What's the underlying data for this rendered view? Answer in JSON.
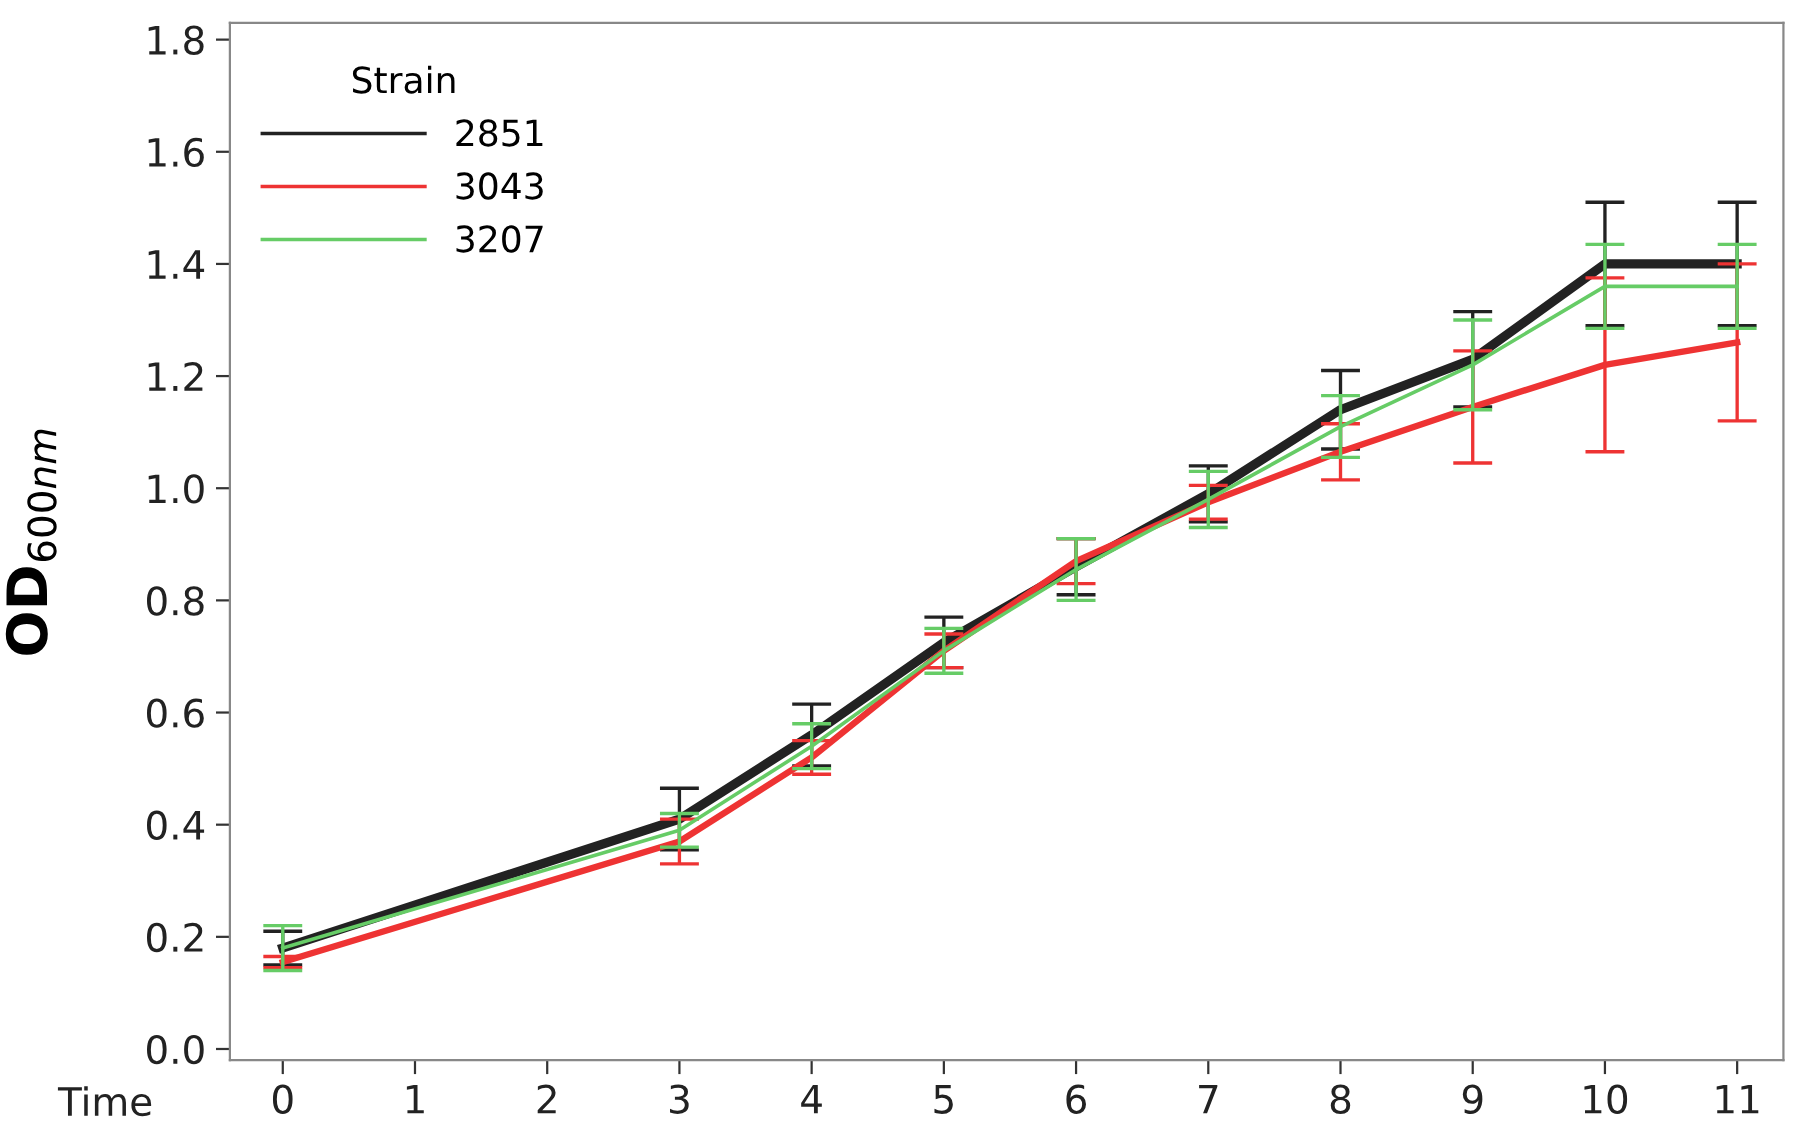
{
  "chart_data": {
    "type": "line",
    "xlabel": "Time",
    "ylabel": "OD$_{600nm}$",
    "legend_title": "Strain",
    "legend": "top left",
    "grid": false,
    "marker": "none",
    "line_style": "solid",
    "x": [
      0,
      3,
      4,
      5,
      6,
      7,
      8,
      9,
      10,
      11
    ],
    "xlim": [
      -0.4,
      11.35
    ],
    "xticks": [
      0,
      1,
      2,
      3,
      4,
      5,
      6,
      7,
      8,
      9,
      10,
      11
    ],
    "ylim": [
      -0.02,
      1.83
    ],
    "yticks": [
      {
        "value": 0,
        "label": "0.0"
      },
      0.2,
      0.4,
      0.6,
      0.8,
      {
        "value": 1,
        "label": "1.0"
      },
      1.2,
      1.4,
      1.6,
      1.8
    ],
    "series": [
      {
        "name": "2851",
        "color": "#222222",
        "values": [
          0.18,
          0.41,
          0.56,
          0.725,
          0.86,
          0.99,
          1.14,
          1.23,
          1.4,
          1.4
        ],
        "errors": [
          0.03,
          0.055,
          0.055,
          0.045,
          0.05,
          0.05,
          0.07,
          0.085,
          0.11,
          0.11
        ]
      },
      {
        "name": "3043",
        "color": "#ee3333",
        "values": [
          0.155,
          0.37,
          0.52,
          0.71,
          0.87,
          0.975,
          1.065,
          1.145,
          1.22,
          1.26
        ],
        "errors": [
          0.01,
          0.04,
          0.03,
          0.03,
          0.04,
          0.03,
          0.05,
          0.1,
          0.155,
          0.14
        ]
      },
      {
        "name": "3207",
        "color": "#66cc66",
        "values": [
          0.18,
          0.39,
          0.54,
          0.71,
          0.855,
          0.98,
          1.11,
          1.22,
          1.36,
          1.36
        ],
        "errors": [
          0.04,
          0.03,
          0.04,
          0.04,
          0.055,
          0.05,
          0.055,
          0.08,
          0.075,
          0.075
        ]
      }
    ]
  }
}
